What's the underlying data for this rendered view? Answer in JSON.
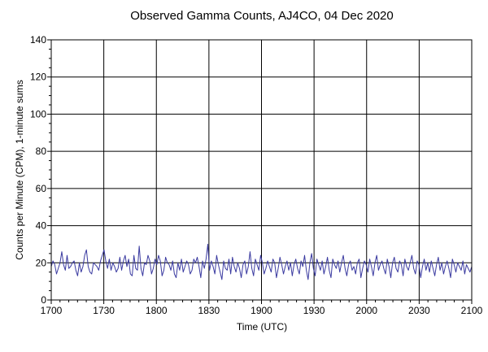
{
  "chart_data": {
    "type": "line",
    "title": "Observed Gamma Counts, AJ4CO, 04 Dec 2020",
    "xlabel": "Time (UTC)",
    "ylabel": "Counts per Minute (CPM), 1-minute sums",
    "x_tick_labels": [
      "1700",
      "1730",
      "1800",
      "1830",
      "1900",
      "1930",
      "2000",
      "2030",
      "2100"
    ],
    "xlim_minutes": [
      0,
      240
    ],
    "ylim": [
      0,
      140
    ],
    "y_ticks": [
      0,
      20,
      40,
      60,
      80,
      100,
      120,
      140
    ],
    "grid": true,
    "legend": "none",
    "series_color": "#3a3aa0",
    "series": [
      {
        "values": [
          18,
          21,
          19,
          14,
          17,
          20,
          26,
          19,
          16,
          24,
          17,
          18,
          20,
          21,
          16,
          13,
          20,
          15,
          18,
          24,
          27,
          18,
          15,
          14,
          20,
          19,
          18,
          16,
          21,
          24,
          27,
          21,
          17,
          22,
          16,
          20,
          18,
          15,
          17,
          23,
          16,
          21,
          24,
          18,
          22,
          14,
          13,
          24,
          17,
          16,
          29,
          17,
          13,
          20,
          19,
          24,
          21,
          14,
          17,
          22,
          19,
          24,
          21,
          13,
          16,
          23,
          20,
          19,
          16,
          21,
          14,
          12,
          20,
          16,
          22,
          15,
          18,
          21,
          19,
          14,
          16,
          22,
          20,
          23,
          18,
          12,
          21,
          17,
          22,
          30,
          16,
          21,
          18,
          14,
          24,
          19,
          15,
          11,
          21,
          17,
          16,
          22,
          14,
          23,
          18,
          15,
          20,
          17,
          12,
          19,
          21,
          14,
          18,
          26,
          17,
          13,
          22,
          19,
          16,
          24,
          20,
          14,
          17,
          21,
          18,
          15,
          22,
          20,
          12,
          17,
          23,
          19,
          14,
          18,
          21,
          16,
          20,
          13,
          19,
          22,
          17,
          14,
          21,
          18,
          24,
          16,
          11,
          20,
          25,
          17,
          13,
          22,
          19,
          16,
          21,
          14,
          18,
          23,
          16,
          12,
          22,
          19,
          17,
          21,
          15,
          20,
          24,
          17,
          13,
          19,
          21,
          16,
          18,
          14,
          20,
          22,
          12,
          17,
          21,
          19,
          15,
          22,
          18,
          13,
          20,
          24,
          16,
          19,
          21,
          17,
          14,
          22,
          18,
          12,
          20,
          23,
          17,
          15,
          21,
          19,
          13,
          22,
          18,
          16,
          20,
          24,
          17,
          14,
          21,
          19,
          12,
          18,
          22,
          16,
          20,
          15,
          21,
          17,
          13,
          19,
          23,
          16,
          20,
          14,
          18,
          21,
          17,
          12,
          22,
          19,
          15,
          20,
          18,
          16,
          21,
          14,
          19,
          17,
          15,
          18
        ]
      }
    ]
  }
}
